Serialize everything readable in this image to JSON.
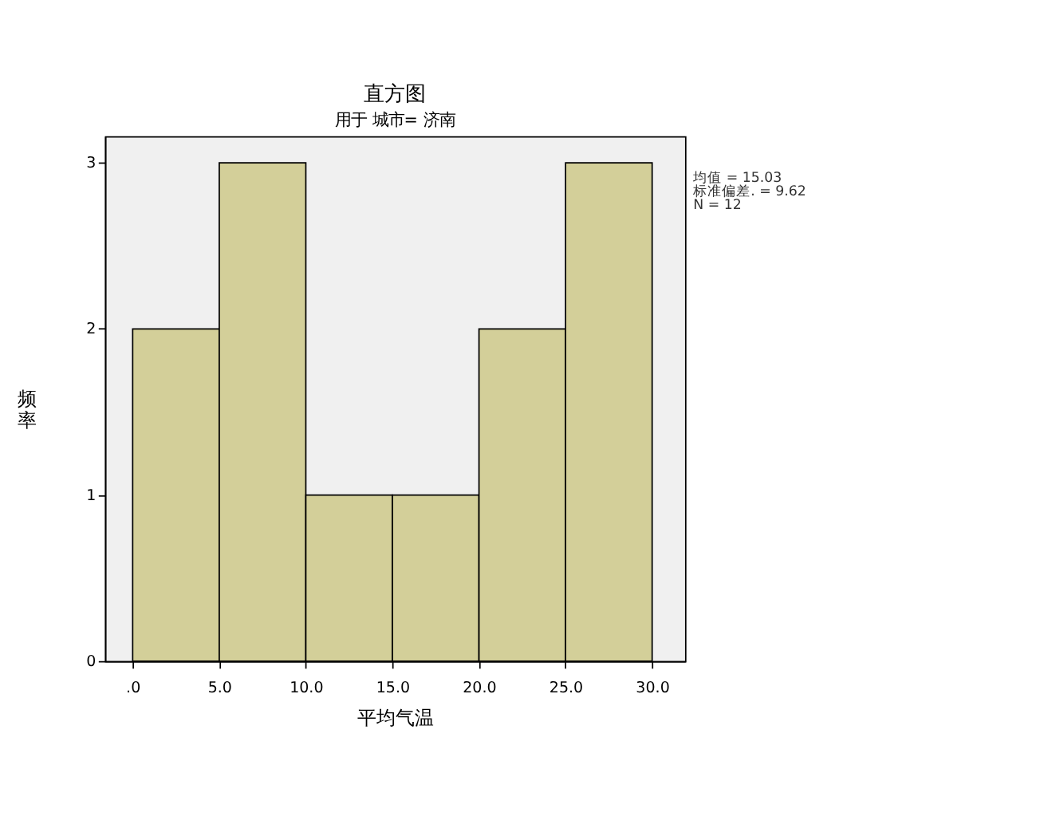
{
  "chart_data": {
    "type": "histogram",
    "title": "直方图",
    "subtitle": "用于 城市= 济南",
    "xlabel": "平均气温",
    "ylabel": "频率",
    "bins": [
      0,
      5,
      10,
      15,
      20,
      25,
      30
    ],
    "values": [
      2,
      3,
      1,
      1,
      2,
      3
    ],
    "color": "#d3cf99",
    "xlim": [
      -1.6,
      31.9
    ],
    "ylim": [
      0,
      3.16
    ],
    "xticks": [
      {
        "value": 0,
        "label": ".0"
      },
      {
        "value": 5,
        "label": "5.0"
      },
      {
        "value": 10,
        "label": "10.0"
      },
      {
        "value": 15,
        "label": "15.0"
      },
      {
        "value": 20,
        "label": "20.0"
      },
      {
        "value": 25,
        "label": "25.0"
      },
      {
        "value": 30,
        "label": "30.0"
      }
    ],
    "yticks": [
      0,
      1,
      2,
      3
    ],
    "grid": false,
    "annotations": [
      "均值 = 15.03",
      "标准偏差. = 9.62",
      "N = 12"
    ]
  }
}
